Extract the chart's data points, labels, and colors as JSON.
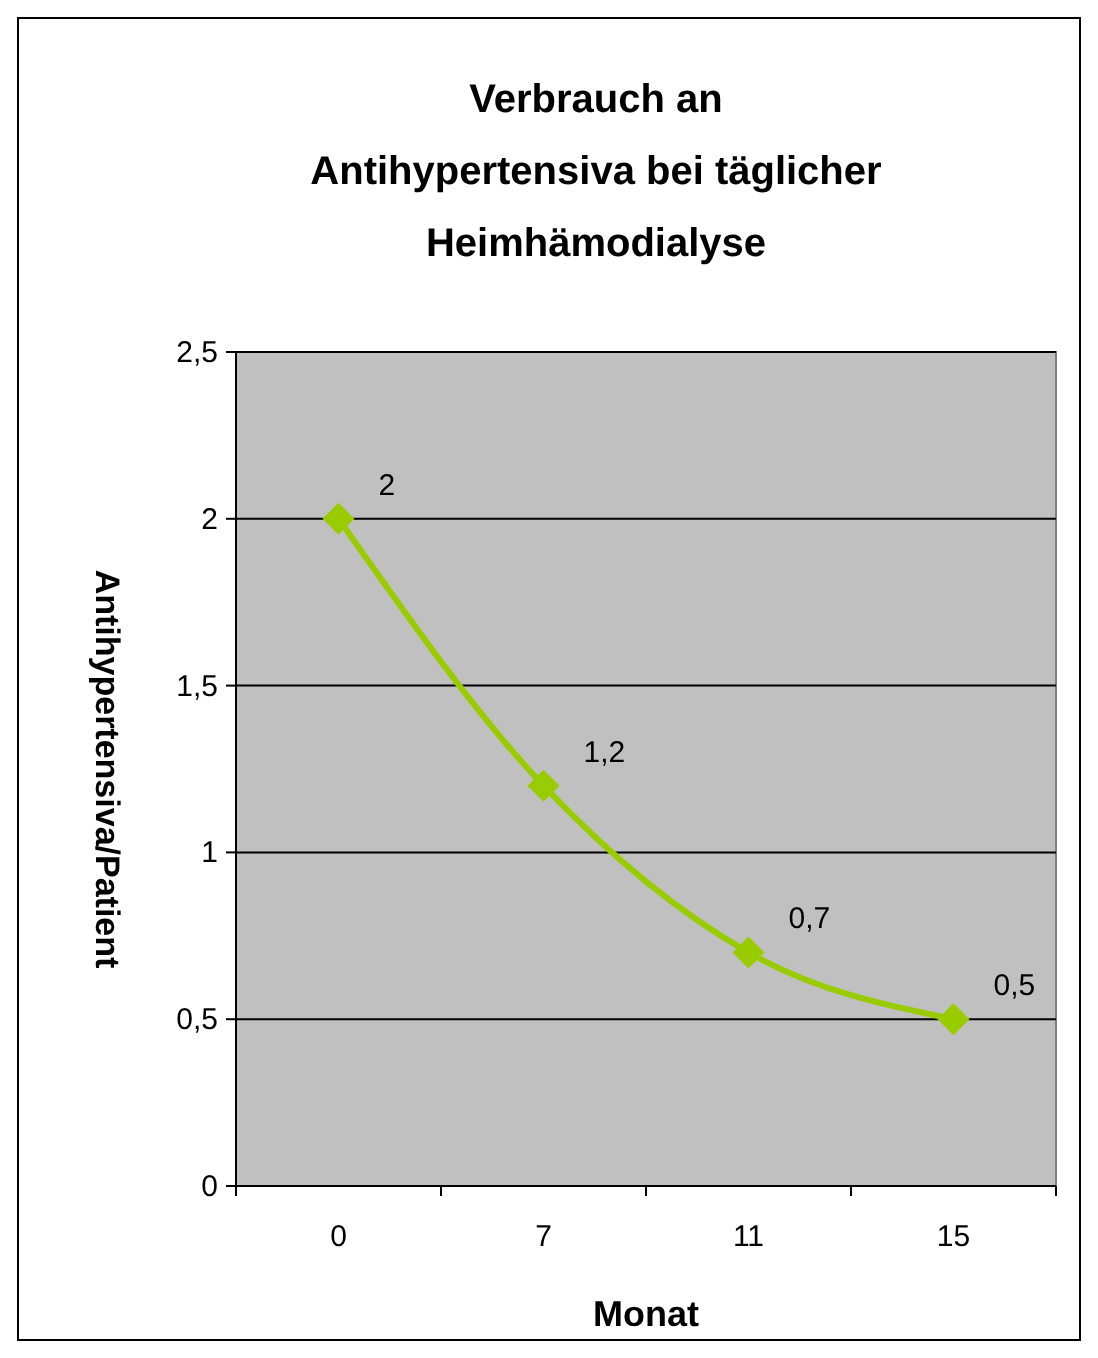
{
  "chart_data": {
    "type": "line",
    "title": "Verbrauch an\nAntihypertensiva bei täglicher\nHeimhämodialyse",
    "xlabel": "Monat",
    "ylabel": "Antihypertensiva/Patient",
    "categories": [
      "0",
      "7",
      "11",
      "15"
    ],
    "series": [
      {
        "color": "#99cc00",
        "values": [
          2,
          1.2,
          0.7,
          0.5
        ]
      }
    ],
    "ylim": [
      0,
      2.5
    ],
    "yticks": [
      0,
      {
        "value": 0.5,
        "label": "0,5"
      },
      1,
      {
        "value": 1.5,
        "label": "1,5"
      },
      2,
      {
        "value": 2.5,
        "label": "2,5"
      }
    ],
    "value_labels": [
      "2",
      "1,2",
      "0,7",
      "0,5"
    ],
    "grid": "y",
    "marker": "diamond"
  }
}
